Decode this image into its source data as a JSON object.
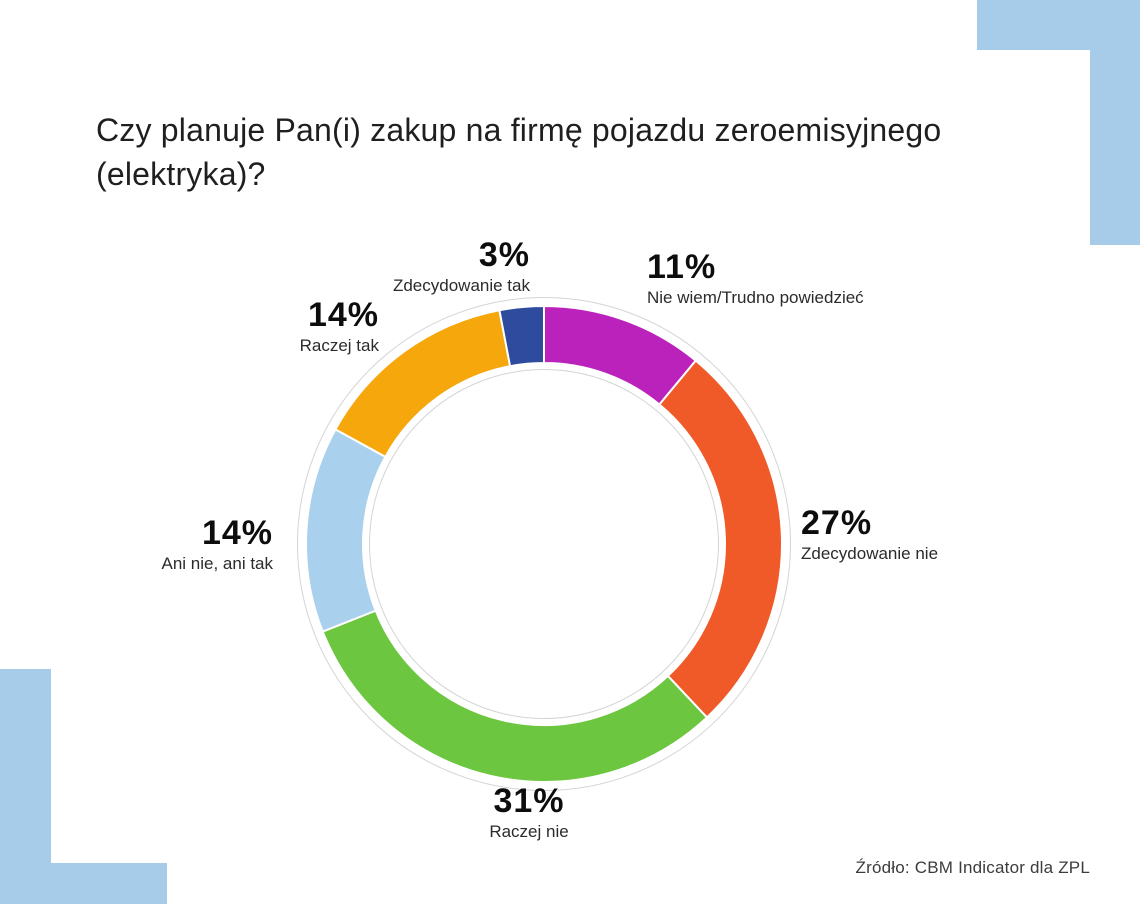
{
  "title": "Czy planuje Pan(i) zakup na firmę pojazdu zeroemisyjnego (elektryka)?",
  "source": "Źródło: CBM Indicator dla ZPL",
  "decoration_color": "#a6cce9",
  "chart_data": {
    "type": "pie",
    "variant": "donut",
    "title": "Czy planuje Pan(i) zakup na firmę pojazdu zeroemisyjnego (elektryka)?",
    "start_angle_deg": 0,
    "direction": "clockwise",
    "legend_position": "around-callouts",
    "total": 100,
    "segments": [
      {
        "key": "nie-wiem",
        "label": "Nie wiem/Trudno powiedzieć",
        "value": 11,
        "pct_text": "11%",
        "color": "#bb22bb"
      },
      {
        "key": "zdecydowanie-nie",
        "label": "Zdecydowanie nie",
        "value": 27,
        "pct_text": "27%",
        "color": "#f05a28"
      },
      {
        "key": "raczej-nie",
        "label": "Raczej nie",
        "value": 31,
        "pct_text": "31%",
        "color": "#6cc640"
      },
      {
        "key": "ani-nie-ani-tak",
        "label": "Ani nie, ani tak",
        "value": 14,
        "pct_text": "14%",
        "color": "#a9d0ec"
      },
      {
        "key": "raczej-tak",
        "label": "Raczej tak",
        "value": 14,
        "pct_text": "14%",
        "color": "#f6a70c"
      },
      {
        "key": "zdecydowanie-tak",
        "label": "Zdecydowanie tak",
        "value": 3,
        "pct_text": "3%",
        "color": "#2f4b9d"
      }
    ],
    "ring": {
      "outline_color": "#d4d4d4",
      "segment_gap_color": "#ffffff"
    }
  }
}
